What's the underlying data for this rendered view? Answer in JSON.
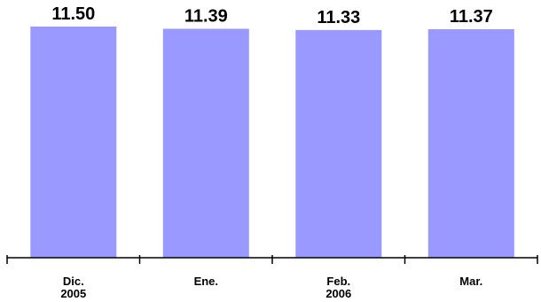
{
  "chart_data": {
    "type": "bar",
    "categories": [
      [
        "Dic.",
        "2005"
      ],
      [
        "Ene."
      ],
      [
        "Feb.",
        "2006"
      ],
      [
        "Mar."
      ]
    ],
    "values": [
      11.5,
      11.39,
      11.33,
      11.37
    ],
    "value_labels": [
      "11.50",
      "11.39",
      "11.33",
      "11.37"
    ],
    "bar_color": "#9999ff",
    "baseline_ratio": 0.0,
    "grid": false
  }
}
